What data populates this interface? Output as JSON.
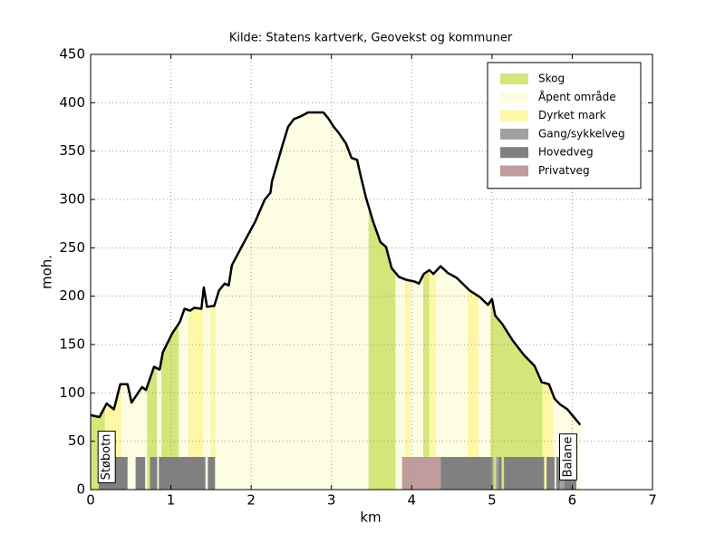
{
  "chart_data": {
    "type": "profile",
    "title": "Kilde: Statens kartverk, Geovekst og kommuner",
    "xlabel": "km",
    "ylabel": "moh.",
    "xlim": [
      0,
      7
    ],
    "ylim": [
      0,
      450
    ],
    "xticks": [
      0,
      1,
      2,
      3,
      4,
      5,
      6,
      7
    ],
    "yticks": [
      0,
      50,
      100,
      150,
      200,
      250,
      300,
      350,
      400,
      450
    ],
    "grid": true,
    "legend": "upper right",
    "series": [
      {
        "color": "#000000",
        "x": [
          0,
          0.11,
          0.2,
          0.29,
          0.37,
          0.46,
          0.51,
          0.64,
          0.69,
          0.79,
          0.86,
          0.9,
          1.02,
          1.11,
          1.17,
          1.24,
          1.29,
          1.38,
          1.41,
          1.45,
          1.54,
          1.6,
          1.67,
          1.72,
          1.76,
          1.9,
          2.05,
          2.17,
          2.24,
          2.26,
          2.32,
          2.39,
          2.46,
          2.53,
          2.62,
          2.71,
          2.82,
          2.9,
          2.96,
          3.03,
          3.09,
          3.18,
          3.25,
          3.32,
          3.36,
          3.43,
          3.52,
          3.61,
          3.68,
          3.75,
          3.84,
          3.93,
          4.04,
          4.09,
          4.15,
          4.22,
          4.27,
          4.36,
          4.45,
          4.56,
          4.72,
          4.85,
          4.95,
          5.0,
          5.04,
          5.13,
          5.26,
          5.4,
          5.53,
          5.62,
          5.71,
          5.78,
          5.85,
          5.94,
          6.1
        ],
        "values": [
          77,
          75,
          89,
          83,
          109,
          109,
          90,
          106,
          103,
          127,
          124,
          142,
          162,
          173,
          187,
          185,
          188,
          187,
          209,
          189,
          190,
          206,
          213,
          211,
          232,
          254,
          277,
          300,
          307,
          319,
          336,
          356,
          375,
          383,
          386,
          390,
          390,
          390,
          384,
          375,
          369,
          358,
          343,
          341,
          326,
          302,
          277,
          256,
          251,
          229,
          220,
          217,
          215,
          213,
          223,
          227,
          223,
          231,
          224,
          219,
          206,
          199,
          191,
          197,
          180,
          171,
          154,
          139,
          128,
          111,
          109,
          94,
          88,
          83,
          67
        ]
      }
    ],
    "layers": [
      {
        "name": "Skog",
        "color": "#d4e67a",
        "kind": "cover",
        "spans": [
          [
            0,
            0.18
          ],
          [
            0.7,
            0.83
          ],
          [
            0.88,
            1.1
          ],
          [
            3.46,
            3.8
          ],
          [
            4.14,
            4.22
          ],
          [
            4.98,
            5.63
          ]
        ]
      },
      {
        "name": "Åpent område",
        "color": "#fdfde4",
        "kind": "cover",
        "spans": [
          [
            0.38,
            0.7
          ],
          [
            0.83,
            0.88
          ],
          [
            1.1,
            1.22
          ],
          [
            1.4,
            1.5
          ],
          [
            1.55,
            3.46
          ],
          [
            3.8,
            3.92
          ],
          [
            3.98,
            4.14
          ],
          [
            4.3,
            4.7
          ],
          [
            4.83,
            4.98
          ],
          [
            5.76,
            6.1
          ]
        ]
      },
      {
        "name": "Dyrket mark",
        "color": "#fdf7a6",
        "kind": "cover",
        "spans": [
          [
            0.18,
            0.38
          ],
          [
            1.22,
            1.4
          ],
          [
            1.5,
            1.55
          ],
          [
            3.92,
            3.98
          ],
          [
            4.22,
            4.3
          ],
          [
            4.7,
            4.83
          ],
          [
            5.63,
            5.76
          ]
        ]
      },
      {
        "name": "Gang/sykkelveg",
        "color": "#a0a0a0",
        "kind": "road",
        "spans": [
          [
            5.0,
            5.02
          ],
          [
            5.05,
            5.08
          ],
          [
            5.85,
            5.9
          ]
        ]
      },
      {
        "name": "Hovedveg",
        "color": "#808080",
        "kind": "road",
        "spans": [
          [
            0.1,
            0.46
          ],
          [
            0.56,
            0.68
          ],
          [
            0.74,
            0.83
          ],
          [
            0.85,
            1.43
          ],
          [
            1.46,
            1.55
          ],
          [
            4.36,
            5.0
          ],
          [
            5.08,
            5.12
          ],
          [
            5.15,
            5.65
          ],
          [
            5.68,
            5.78
          ],
          [
            5.8,
            5.85
          ],
          [
            5.9,
            6.05
          ]
        ]
      },
      {
        "name": "Privatveg",
        "color": "#c09c9c",
        "kind": "road",
        "spans": [
          [
            3.88,
            4.36
          ]
        ]
      }
    ],
    "annotations": [
      {
        "text": "Støbotn",
        "x": 0.2
      },
      {
        "text": "Balane",
        "x": 5.95
      }
    ]
  }
}
